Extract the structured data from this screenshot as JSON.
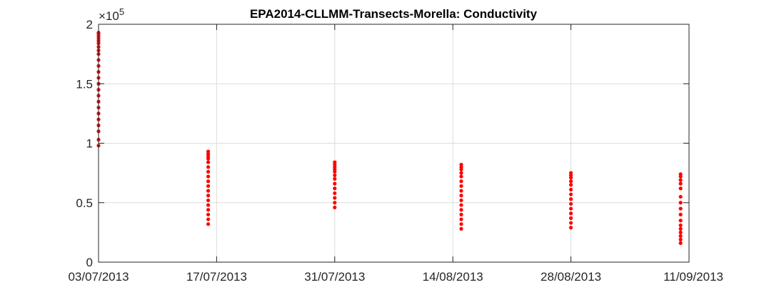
{
  "chart_data": {
    "type": "scatter",
    "title": "EPA2014-CLLMM-Transects-Morella: Conductivity",
    "xlabel": "",
    "ylabel": "",
    "y_exponent_label": "×10",
    "y_exponent_power": "5",
    "y_tick_labels": [
      "0",
      "0.5",
      "1",
      "1.5",
      "2"
    ],
    "y_ticks": [
      0,
      50000,
      100000,
      150000,
      200000
    ],
    "ylim": [
      0,
      200000
    ],
    "x_tick_labels": [
      "03/07/2013",
      "17/07/2013",
      "31/07/2013",
      "14/08/2013",
      "28/08/2013",
      "11/09/2013"
    ],
    "x_ticks": [
      "2013-07-03",
      "2013-07-17",
      "2013-07-31",
      "2013-08-14",
      "2013-08-28",
      "2013-09-11"
    ],
    "xlim": [
      "2013-07-03",
      "2013-09-11"
    ],
    "grid": true,
    "marker_color": "#ff0000",
    "series": [
      {
        "points": [
          {
            "x": "2013-07-03",
            "y": 98000
          },
          {
            "x": "2013-07-03",
            "y": 103000
          },
          {
            "x": "2013-07-03",
            "y": 110000
          },
          {
            "x": "2013-07-03",
            "y": 115000
          },
          {
            "x": "2013-07-03",
            "y": 120000
          },
          {
            "x": "2013-07-03",
            "y": 125000
          },
          {
            "x": "2013-07-03",
            "y": 130000
          },
          {
            "x": "2013-07-03",
            "y": 135000
          },
          {
            "x": "2013-07-03",
            "y": 140000
          },
          {
            "x": "2013-07-03",
            "y": 145000
          },
          {
            "x": "2013-07-03",
            "y": 150000
          },
          {
            "x": "2013-07-03",
            "y": 155000
          },
          {
            "x": "2013-07-03",
            "y": 160000
          },
          {
            "x": "2013-07-03",
            "y": 165000
          },
          {
            "x": "2013-07-03",
            "y": 170000
          },
          {
            "x": "2013-07-03",
            "y": 175000
          },
          {
            "x": "2013-07-03",
            "y": 178000
          },
          {
            "x": "2013-07-03",
            "y": 181000
          },
          {
            "x": "2013-07-03",
            "y": 184000
          },
          {
            "x": "2013-07-03",
            "y": 186000
          },
          {
            "x": "2013-07-03",
            "y": 188000
          },
          {
            "x": "2013-07-03",
            "y": 190000
          },
          {
            "x": "2013-07-03",
            "y": 192000
          },
          {
            "x": "2013-07-03",
            "y": 193000
          },
          {
            "x": "2013-07-16",
            "y": 32000
          },
          {
            "x": "2013-07-16",
            "y": 36000
          },
          {
            "x": "2013-07-16",
            "y": 40000
          },
          {
            "x": "2013-07-16",
            "y": 44000
          },
          {
            "x": "2013-07-16",
            "y": 48000
          },
          {
            "x": "2013-07-16",
            "y": 52000
          },
          {
            "x": "2013-07-16",
            "y": 56000
          },
          {
            "x": "2013-07-16",
            "y": 60000
          },
          {
            "x": "2013-07-16",
            "y": 64000
          },
          {
            "x": "2013-07-16",
            "y": 68000
          },
          {
            "x": "2013-07-16",
            "y": 72000
          },
          {
            "x": "2013-07-16",
            "y": 76000
          },
          {
            "x": "2013-07-16",
            "y": 80000
          },
          {
            "x": "2013-07-16",
            "y": 84000
          },
          {
            "x": "2013-07-16",
            "y": 87000
          },
          {
            "x": "2013-07-16",
            "y": 89000
          },
          {
            "x": "2013-07-16",
            "y": 91000
          },
          {
            "x": "2013-07-16",
            "y": 93000
          },
          {
            "x": "2013-07-31",
            "y": 46000
          },
          {
            "x": "2013-07-31",
            "y": 50000
          },
          {
            "x": "2013-07-31",
            "y": 54000
          },
          {
            "x": "2013-07-31",
            "y": 58000
          },
          {
            "x": "2013-07-31",
            "y": 62000
          },
          {
            "x": "2013-07-31",
            "y": 66000
          },
          {
            "x": "2013-07-31",
            "y": 70000
          },
          {
            "x": "2013-07-31",
            "y": 73000
          },
          {
            "x": "2013-07-31",
            "y": 76000
          },
          {
            "x": "2013-07-31",
            "y": 78000
          },
          {
            "x": "2013-07-31",
            "y": 80000
          },
          {
            "x": "2013-07-31",
            "y": 82000
          },
          {
            "x": "2013-07-31",
            "y": 84000
          },
          {
            "x": "2013-08-15",
            "y": 28000
          },
          {
            "x": "2013-08-15",
            "y": 32000
          },
          {
            "x": "2013-08-15",
            "y": 36000
          },
          {
            "x": "2013-08-15",
            "y": 40000
          },
          {
            "x": "2013-08-15",
            "y": 44000
          },
          {
            "x": "2013-08-15",
            "y": 48000
          },
          {
            "x": "2013-08-15",
            "y": 52000
          },
          {
            "x": "2013-08-15",
            "y": 56000
          },
          {
            "x": "2013-08-15",
            "y": 60000
          },
          {
            "x": "2013-08-15",
            "y": 64000
          },
          {
            "x": "2013-08-15",
            "y": 68000
          },
          {
            "x": "2013-08-15",
            "y": 72000
          },
          {
            "x": "2013-08-15",
            "y": 75000
          },
          {
            "x": "2013-08-15",
            "y": 78000
          },
          {
            "x": "2013-08-15",
            "y": 80000
          },
          {
            "x": "2013-08-15",
            "y": 82000
          },
          {
            "x": "2013-08-28",
            "y": 29000
          },
          {
            "x": "2013-08-28",
            "y": 33000
          },
          {
            "x": "2013-08-28",
            "y": 37000
          },
          {
            "x": "2013-08-28",
            "y": 41000
          },
          {
            "x": "2013-08-28",
            "y": 45000
          },
          {
            "x": "2013-08-28",
            "y": 49000
          },
          {
            "x": "2013-08-28",
            "y": 53000
          },
          {
            "x": "2013-08-28",
            "y": 57000
          },
          {
            "x": "2013-08-28",
            "y": 61000
          },
          {
            "x": "2013-08-28",
            "y": 65000
          },
          {
            "x": "2013-08-28",
            "y": 68000
          },
          {
            "x": "2013-08-28",
            "y": 71000
          },
          {
            "x": "2013-08-28",
            "y": 73000
          },
          {
            "x": "2013-08-28",
            "y": 75000
          },
          {
            "x": "2013-09-10",
            "y": 16000
          },
          {
            "x": "2013-09-10",
            "y": 19000
          },
          {
            "x": "2013-09-10",
            "y": 22000
          },
          {
            "x": "2013-09-10",
            "y": 25000
          },
          {
            "x": "2013-09-10",
            "y": 28000
          },
          {
            "x": "2013-09-10",
            "y": 31000
          },
          {
            "x": "2013-09-10",
            "y": 35000
          },
          {
            "x": "2013-09-10",
            "y": 40000
          },
          {
            "x": "2013-09-10",
            "y": 45000
          },
          {
            "x": "2013-09-10",
            "y": 50000
          },
          {
            "x": "2013-09-10",
            "y": 55000
          },
          {
            "x": "2013-09-10",
            "y": 62000
          },
          {
            "x": "2013-09-10",
            "y": 66000
          },
          {
            "x": "2013-09-10",
            "y": 69000
          },
          {
            "x": "2013-09-10",
            "y": 72000
          },
          {
            "x": "2013-09-10",
            "y": 74000
          }
        ]
      }
    ]
  }
}
